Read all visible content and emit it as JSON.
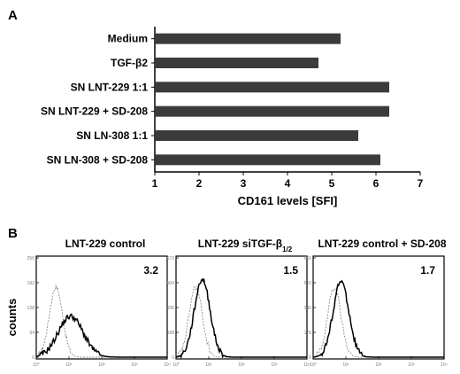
{
  "panel_a": {
    "letter": "A"
  },
  "panel_b": {
    "letter": "B",
    "ylabel": "counts"
  },
  "chart_data": [
    {
      "type": "bar",
      "orientation": "horizontal",
      "categories": [
        "Medium",
        "TGF-β2",
        "SN LNT-229 1:1",
        "SN LNT-229 + SD-208",
        "SN LN-308 1:1",
        "SN LN-308 + SD-208"
      ],
      "values": [
        5.2,
        4.7,
        6.3,
        6.3,
        5.6,
        6.1
      ],
      "xlabel": "CD161 levels [SFI]",
      "xlim": [
        1,
        7
      ],
      "xticks": [
        "1",
        "2",
        "3",
        "4",
        "5",
        "6",
        "7"
      ],
      "bar_color": "#3b3b3b"
    },
    {
      "type": "line",
      "panels": [
        {
          "title": "LNT-229 control",
          "title_sub": "",
          "value_label": "3.2",
          "yticks": [
            "256",
            "192",
            "128",
            "64",
            "0"
          ],
          "xticks": [
            "10⁰",
            "10¹",
            "10²",
            "10³",
            "10⁴"
          ],
          "control_peak": 0.6,
          "control_width": 0.2,
          "control_height": 0.72,
          "sample_peak": 1.05,
          "sample_width": 0.38,
          "sample_height": 0.42
        },
        {
          "title": "LNT-229 siTGF-β",
          "title_sub": "1/2",
          "value_label": "1.5",
          "yticks": [
            "672",
            "504",
            "336",
            "168",
            "0"
          ],
          "xticks": [
            "10⁰",
            "10¹",
            "10²",
            "10³",
            "10⁴"
          ],
          "control_peak": 0.6,
          "control_width": 0.2,
          "control_height": 0.72,
          "sample_peak": 0.8,
          "sample_width": 0.24,
          "sample_height": 0.8
        },
        {
          "title": "LNT-229 control + SD-208",
          "title_sub": "",
          "value_label": "1.7",
          "yticks": [
            "681",
            "510",
            "340",
            "170",
            "0"
          ],
          "xticks": [
            "10⁰",
            "10¹",
            "10²",
            "10³",
            "10⁴"
          ],
          "control_peak": 0.65,
          "control_width": 0.2,
          "control_height": 0.72,
          "sample_peak": 0.85,
          "sample_width": 0.24,
          "sample_height": 0.78
        }
      ]
    }
  ]
}
